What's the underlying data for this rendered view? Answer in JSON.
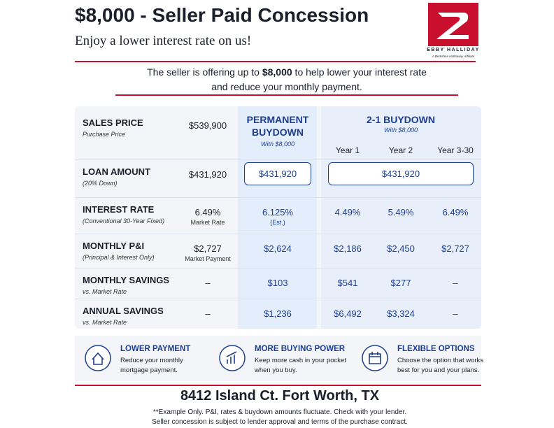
{
  "header": {
    "title": "$8,000 - Seller Paid Concession",
    "subtitle": "Enjoy a lower interest rate on us!",
    "logo_name": "EBBY HALLIDAY",
    "logo_tagline": "A Berkshire Hathaway Affiliate"
  },
  "intro": {
    "line1_before": "The seller is offering up to ",
    "line1_amount": "$8,000",
    "line1_after": " to help lower your interest rate",
    "line2": "and reduce your monthly payment."
  },
  "table": {
    "permanent": {
      "title_line1": "PERMANENT",
      "title_line2": "BUYDOWN",
      "subtitle": "With $8,000"
    },
    "buydown": {
      "title": "2-1 BUYDOWN",
      "subtitle": "With $8,000",
      "years": [
        "Year 1",
        "Year 2",
        "Year 3-30"
      ]
    },
    "rows": [
      {
        "label": "SALES PRICE",
        "sublabel": "Purchase Price",
        "market": "$539,900"
      },
      {
        "label": "LOAN AMOUNT",
        "sublabel": "(20% Down)",
        "market": "$431,920",
        "permanent": "$431,920",
        "buydown_all": "$431,920"
      },
      {
        "label": "INTEREST RATE",
        "sublabel": "(Conventional 30-Year Fixed)",
        "market": "6.49%",
        "market_note": "Market Rate",
        "permanent": "6.125%",
        "permanent_note": "(Est.)",
        "year1": "4.49%",
        "year2": "5.49%",
        "year3": "6.49%"
      },
      {
        "label": "MONTHLY P&I",
        "sublabel": "(Principal & Interest Only)",
        "market": "$2,727",
        "market_note": "Market Payment",
        "permanent": "$2,624",
        "year1": "$2,186",
        "year2": "$2,450",
        "year3": "$2,727"
      },
      {
        "label": "MONTHLY SAVINGS",
        "sublabel": "vs. Market Rate",
        "market": "–",
        "permanent": "$103",
        "year1": "$541",
        "year2": "$277",
        "year3": "–"
      },
      {
        "label": "ANNUAL SAVINGS",
        "sublabel": "vs. Market Rate",
        "market": "–",
        "permanent": "$1,236",
        "year1": "$6,492",
        "year2": "$3,324",
        "year3": "–"
      }
    ]
  },
  "features": [
    {
      "title": "LOWER PAYMENT",
      "line1": "Reduce your monthly",
      "line2": "mortgage payment."
    },
    {
      "title": "MORE BUYING POWER",
      "line1": "Keep more cash in your pocket",
      "line2": "when you buy."
    },
    {
      "title": "FLEXIBLE OPTIONS",
      "line1": "Choose the option that works",
      "line2": "best for you and your plans."
    }
  ],
  "footer": {
    "address": "8412 Island Ct. Fort Worth, TX",
    "note1": "**Example Only. P&I, rates & buydown amounts fluctuate. Check with your lender.",
    "note2": "Seller concession is subject to lender approval and terms of the purchase contract."
  }
}
